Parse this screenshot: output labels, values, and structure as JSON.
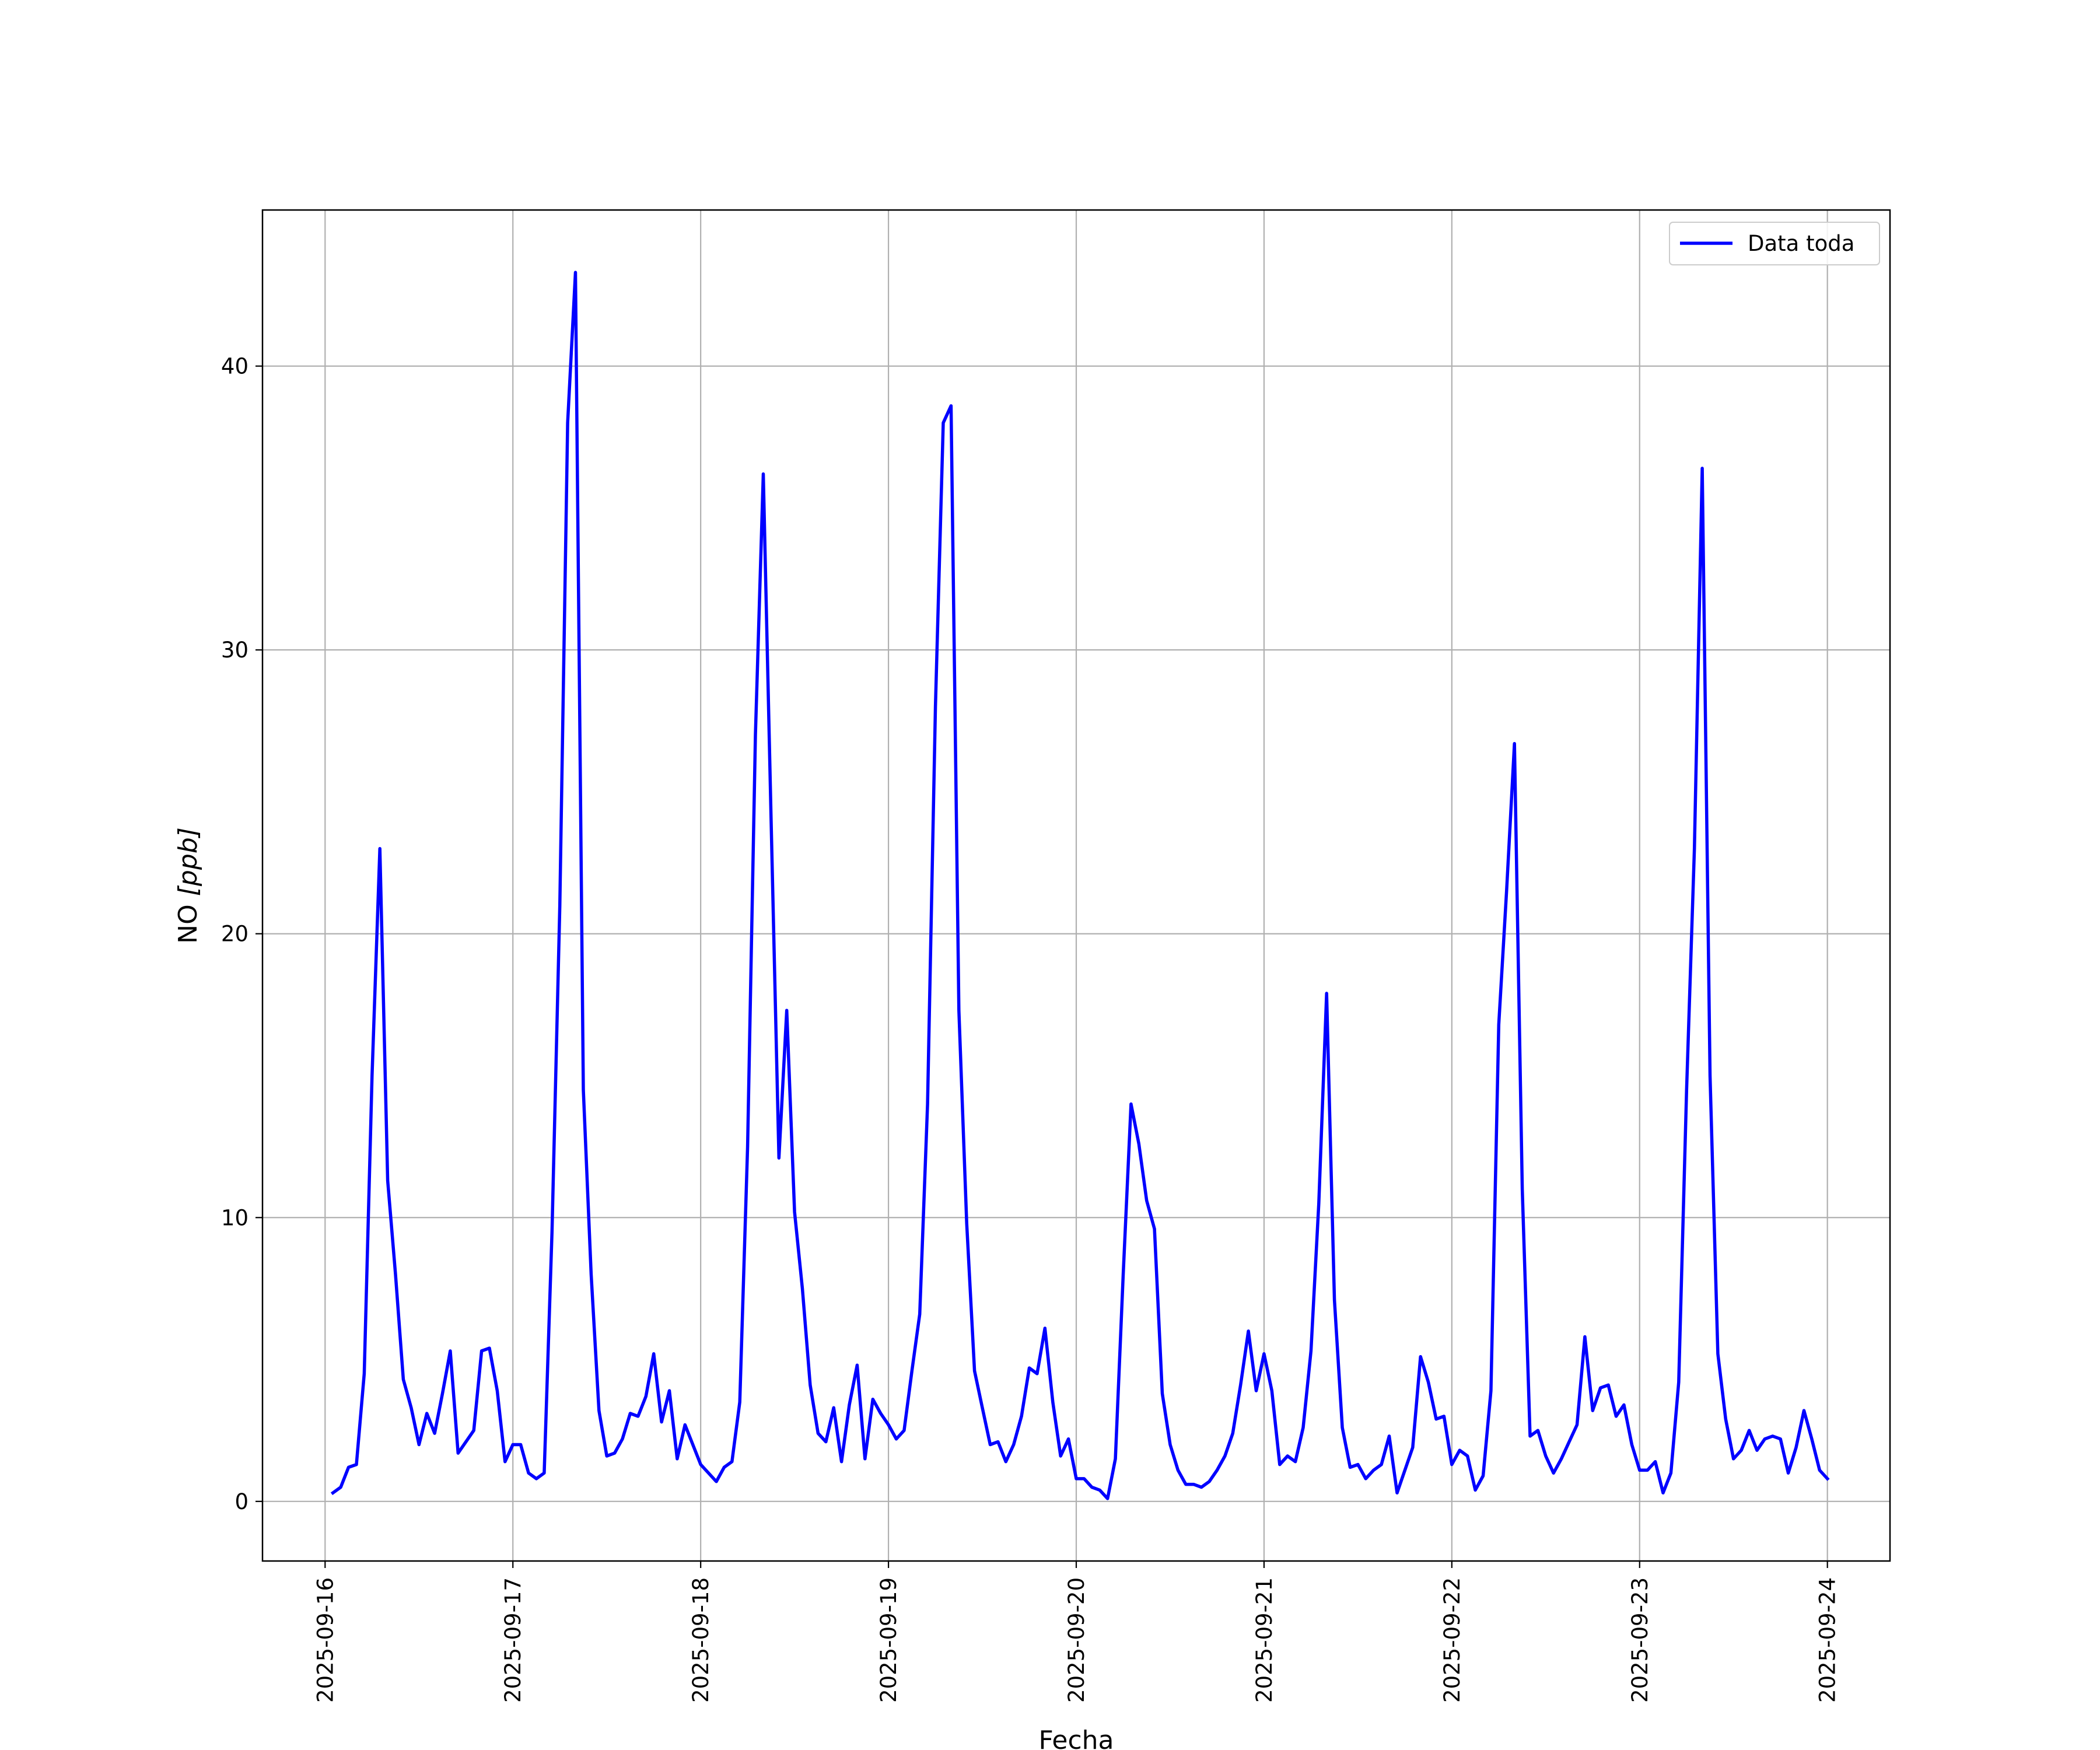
{
  "chart_data": {
    "type": "line",
    "xlabel": "Fecha",
    "ylabel_main": "NO ",
    "ylabel_unit": "[ppb]",
    "grid": true,
    "legend_position": "top-right",
    "xlim": [
      "2025-09-15T16:00",
      "2025-09-24T08:00"
    ],
    "ylim": [
      -2.1,
      45.5
    ],
    "x_ticks": [
      "2025-09-16",
      "2025-09-17",
      "2025-09-18",
      "2025-09-19",
      "2025-09-20",
      "2025-09-21",
      "2025-09-22",
      "2025-09-23",
      "2025-09-24"
    ],
    "y_ticks": [
      0,
      10,
      20,
      30,
      40
    ],
    "series": [
      {
        "name": "Data toda",
        "color": "#0000ff",
        "x": [
          "2025-09-16T01:00",
          "2025-09-16T02:00",
          "2025-09-16T03:00",
          "2025-09-16T04:00",
          "2025-09-16T05:00",
          "2025-09-16T06:00",
          "2025-09-16T07:00",
          "2025-09-16T08:00",
          "2025-09-16T09:00",
          "2025-09-16T10:00",
          "2025-09-16T11:00",
          "2025-09-16T12:00",
          "2025-09-16T13:00",
          "2025-09-16T14:00",
          "2025-09-16T15:00",
          "2025-09-16T16:00",
          "2025-09-16T17:00",
          "2025-09-16T18:00",
          "2025-09-16T19:00",
          "2025-09-16T20:00",
          "2025-09-16T21:00",
          "2025-09-16T22:00",
          "2025-09-16T23:00",
          "2025-09-17T00:00",
          "2025-09-17T01:00",
          "2025-09-17T02:00",
          "2025-09-17T03:00",
          "2025-09-17T04:00",
          "2025-09-17T05:00",
          "2025-09-17T06:00",
          "2025-09-17T07:00",
          "2025-09-17T08:00",
          "2025-09-17T09:00",
          "2025-09-17T10:00",
          "2025-09-17T11:00",
          "2025-09-17T12:00",
          "2025-09-17T13:00",
          "2025-09-17T14:00",
          "2025-09-17T15:00",
          "2025-09-17T16:00",
          "2025-09-17T17:00",
          "2025-09-17T18:00",
          "2025-09-17T19:00",
          "2025-09-17T20:00",
          "2025-09-17T21:00",
          "2025-09-17T22:00",
          "2025-09-17T23:00",
          "2025-09-18T00:00",
          "2025-09-18T01:00",
          "2025-09-18T02:00",
          "2025-09-18T03:00",
          "2025-09-18T04:00",
          "2025-09-18T05:00",
          "2025-09-18T06:00",
          "2025-09-18T07:00",
          "2025-09-18T08:00",
          "2025-09-18T09:00",
          "2025-09-18T10:00",
          "2025-09-18T11:00",
          "2025-09-18T12:00",
          "2025-09-18T13:00",
          "2025-09-18T14:00",
          "2025-09-18T15:00",
          "2025-09-18T16:00",
          "2025-09-18T17:00",
          "2025-09-18T18:00",
          "2025-09-18T19:00",
          "2025-09-18T20:00",
          "2025-09-18T21:00",
          "2025-09-18T22:00",
          "2025-09-18T23:00",
          "2025-09-19T00:00",
          "2025-09-19T01:00",
          "2025-09-19T02:00",
          "2025-09-19T03:00",
          "2025-09-19T04:00",
          "2025-09-19T05:00",
          "2025-09-19T06:00",
          "2025-09-19T07:00",
          "2025-09-19T08:00",
          "2025-09-19T09:00",
          "2025-09-19T10:00",
          "2025-09-19T11:00",
          "2025-09-19T12:00",
          "2025-09-19T13:00",
          "2025-09-19T14:00",
          "2025-09-19T15:00",
          "2025-09-19T16:00",
          "2025-09-19T17:00",
          "2025-09-19T18:00",
          "2025-09-19T19:00",
          "2025-09-19T20:00",
          "2025-09-19T21:00",
          "2025-09-19T22:00",
          "2025-09-19T23:00",
          "2025-09-20T00:00",
          "2025-09-20T01:00",
          "2025-09-20T02:00",
          "2025-09-20T03:00",
          "2025-09-20T04:00",
          "2025-09-20T05:00",
          "2025-09-20T06:00",
          "2025-09-20T07:00",
          "2025-09-20T08:00",
          "2025-09-20T09:00",
          "2025-09-20T10:00",
          "2025-09-20T11:00",
          "2025-09-20T12:00",
          "2025-09-20T13:00",
          "2025-09-20T14:00",
          "2025-09-20T15:00",
          "2025-09-20T16:00",
          "2025-09-20T17:00",
          "2025-09-20T18:00",
          "2025-09-20T19:00",
          "2025-09-20T20:00",
          "2025-09-20T21:00",
          "2025-09-20T22:00",
          "2025-09-20T23:00",
          "2025-09-21T00:00",
          "2025-09-21T01:00",
          "2025-09-21T02:00",
          "2025-09-21T03:00",
          "2025-09-21T04:00",
          "2025-09-21T05:00",
          "2025-09-21T06:00",
          "2025-09-21T07:00",
          "2025-09-21T08:00",
          "2025-09-21T09:00",
          "2025-09-21T10:00",
          "2025-09-21T11:00",
          "2025-09-21T12:00",
          "2025-09-21T13:00",
          "2025-09-21T14:00",
          "2025-09-21T15:00",
          "2025-09-21T16:00",
          "2025-09-21T17:00",
          "2025-09-21T18:00",
          "2025-09-21T19:00",
          "2025-09-21T20:00",
          "2025-09-21T21:00",
          "2025-09-21T22:00",
          "2025-09-21T23:00",
          "2025-09-22T00:00",
          "2025-09-22T01:00",
          "2025-09-22T02:00",
          "2025-09-22T03:00",
          "2025-09-22T04:00",
          "2025-09-22T05:00",
          "2025-09-22T06:00",
          "2025-09-22T07:00",
          "2025-09-22T08:00",
          "2025-09-22T09:00",
          "2025-09-22T10:00",
          "2025-09-22T11:00",
          "2025-09-22T12:00",
          "2025-09-22T13:00",
          "2025-09-22T14:00",
          "2025-09-22T15:00",
          "2025-09-22T16:00",
          "2025-09-22T17:00",
          "2025-09-22T18:00",
          "2025-09-22T19:00",
          "2025-09-22T20:00",
          "2025-09-22T21:00",
          "2025-09-22T22:00",
          "2025-09-22T23:00",
          "2025-09-23T00:00",
          "2025-09-23T01:00",
          "2025-09-23T02:00",
          "2025-09-23T03:00",
          "2025-09-23T04:00",
          "2025-09-23T05:00",
          "2025-09-23T06:00",
          "2025-09-23T07:00",
          "2025-09-23T08:00",
          "2025-09-23T09:00",
          "2025-09-23T10:00",
          "2025-09-23T11:00",
          "2025-09-23T12:00",
          "2025-09-23T13:00",
          "2025-09-23T14:00",
          "2025-09-23T15:00",
          "2025-09-23T16:00",
          "2025-09-23T17:00",
          "2025-09-23T18:00",
          "2025-09-23T19:00",
          "2025-09-23T20:00",
          "2025-09-23T21:00",
          "2025-09-23T22:00",
          "2025-09-23T23:00",
          "2025-09-24T00:00"
        ],
        "values": [
          0.3,
          0.5,
          1.2,
          1.3,
          4.5,
          15.0,
          23.0,
          11.3,
          8.0,
          4.3,
          3.3,
          2.0,
          3.1,
          2.4,
          3.8,
          5.3,
          1.7,
          2.1,
          2.5,
          5.3,
          5.4,
          3.9,
          1.4,
          2.0,
          2.0,
          1.0,
          0.8,
          1.0,
          9.5,
          21.0,
          38.0,
          43.3,
          14.5,
          8.0,
          3.2,
          1.6,
          1.7,
          2.2,
          3.1,
          3.0,
          3.7,
          5.2,
          2.8,
          3.9,
          1.5,
          2.7,
          2.0,
          1.3,
          1.0,
          0.7,
          1.2,
          1.4,
          3.5,
          12.5,
          27.0,
          36.2,
          24.0,
          12.1,
          17.3,
          10.2,
          7.5,
          4.1,
          2.4,
          2.1,
          3.3,
          1.4,
          3.4,
          4.8,
          1.5,
          3.6,
          3.1,
          2.7,
          2.2,
          2.5,
          4.6,
          6.6,
          14.0,
          28.0,
          38.0,
          38.6,
          17.3,
          9.8,
          4.6,
          3.3,
          2.0,
          2.1,
          1.4,
          2.0,
          3.0,
          4.7,
          4.5,
          6.1,
          3.5,
          1.6,
          2.2,
          0.8,
          0.8,
          0.5,
          0.4,
          0.1,
          1.5,
          8.0,
          14.0,
          12.6,
          10.6,
          9.6,
          3.8,
          2.0,
          1.1,
          0.6,
          0.6,
          0.5,
          0.7,
          1.1,
          1.6,
          2.4,
          4.1,
          6.0,
          3.9,
          5.2,
          3.9,
          1.3,
          1.6,
          1.4,
          2.6,
          5.3,
          10.5,
          17.9,
          7.1,
          2.6,
          1.2,
          1.3,
          0.8,
          1.1,
          1.3,
          2.3,
          0.3,
          1.1,
          1.9,
          5.1,
          4.2,
          2.9,
          3.0,
          1.3,
          1.8,
          1.6,
          0.4,
          0.9,
          3.9,
          16.8,
          21.5,
          26.7,
          11.0,
          2.3,
          2.5,
          1.6,
          1.0,
          1.5,
          2.1,
          2.7,
          5.8,
          3.2,
          4.0,
          4.1,
          3.0,
          3.4,
          2.0,
          1.1,
          1.1,
          1.4,
          0.3,
          1.0,
          4.2,
          14.5,
          23.0,
          36.4,
          15.0,
          5.2,
          2.9,
          1.5,
          1.8,
          2.5,
          1.8,
          2.2,
          2.3,
          2.2,
          1.0,
          1.9,
          3.2,
          2.2,
          1.1,
          0.8
        ]
      }
    ]
  }
}
